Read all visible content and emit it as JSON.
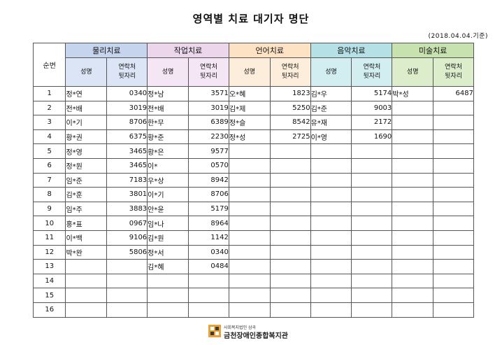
{
  "title": "영역별 치료 대기자 명단",
  "date_note": "(2018.04.04.기준)",
  "header": {
    "seq": "순번",
    "categories": [
      "물리치료",
      "작업치료",
      "언어치료",
      "음악치료",
      "미술치료"
    ],
    "name_label": "성명",
    "phone_label_1": "연락처",
    "phone_label_2": "뒷자리"
  },
  "rows": [
    [
      "1",
      "정*연",
      "0340",
      "정*남",
      "3571",
      "오*혜",
      "1823",
      "김*우",
      "5174",
      "박*성",
      "6487"
    ],
    [
      "2",
      "전*배",
      "3019",
      "전*배",
      "3019",
      "김*제",
      "5250",
      "김*준",
      "9003",
      "",
      ""
    ],
    [
      "3",
      "이*기",
      "8706",
      "한*무",
      "6389",
      "정*슬",
      "8542",
      "유*재",
      "2172",
      "",
      ""
    ],
    [
      "4",
      "황*권",
      "6375",
      "황*준",
      "2230",
      "정*성",
      "2725",
      "이*영",
      "1690",
      "",
      ""
    ],
    [
      "5",
      "정*영",
      "3465",
      "황*은",
      "9577",
      "",
      "",
      "",
      "",
      "",
      ""
    ],
    [
      "6",
      "정*원",
      "3465",
      "이*",
      "0570",
      "",
      "",
      "",
      "",
      "",
      ""
    ],
    [
      "7",
      "임*준",
      "7183",
      "우*상",
      "8942",
      "",
      "",
      "",
      "",
      "",
      ""
    ],
    [
      "8",
      "김*훈",
      "3801",
      "이*기",
      "8706",
      "",
      "",
      "",
      "",
      "",
      ""
    ],
    [
      "9",
      "임*주",
      "3883",
      "안*윤",
      "5179",
      "",
      "",
      "",
      "",
      "",
      ""
    ],
    [
      "10",
      "홍*표",
      "0967",
      "임*나",
      "8964",
      "",
      "",
      "",
      "",
      "",
      ""
    ],
    [
      "11",
      "이*백",
      "9106",
      "김*원",
      "1142",
      "",
      "",
      "",
      "",
      "",
      ""
    ],
    [
      "12",
      "박*완",
      "5806",
      "정*서",
      "0340",
      "",
      "",
      "",
      "",
      "",
      ""
    ],
    [
      "13",
      "",
      "",
      "김*혜",
      "0484",
      "",
      "",
      "",
      "",
      "",
      ""
    ],
    [
      "14",
      "",
      "",
      "",
      "",
      "",
      "",
      "",
      "",
      "",
      ""
    ],
    [
      "15",
      "",
      "",
      "",
      "",
      "",
      "",
      "",
      "",
      "",
      ""
    ],
    [
      "16",
      "",
      "",
      "",
      "",
      "",
      "",
      "",
      "",
      "",
      ""
    ]
  ],
  "footer": {
    "sub": "사회복지법인 삼곡",
    "org": "금천장애인종합복지관",
    "logo_icon": "org-logo-icon",
    "logo_colors": [
      "#e8a23a",
      "#3b3b3b"
    ]
  }
}
